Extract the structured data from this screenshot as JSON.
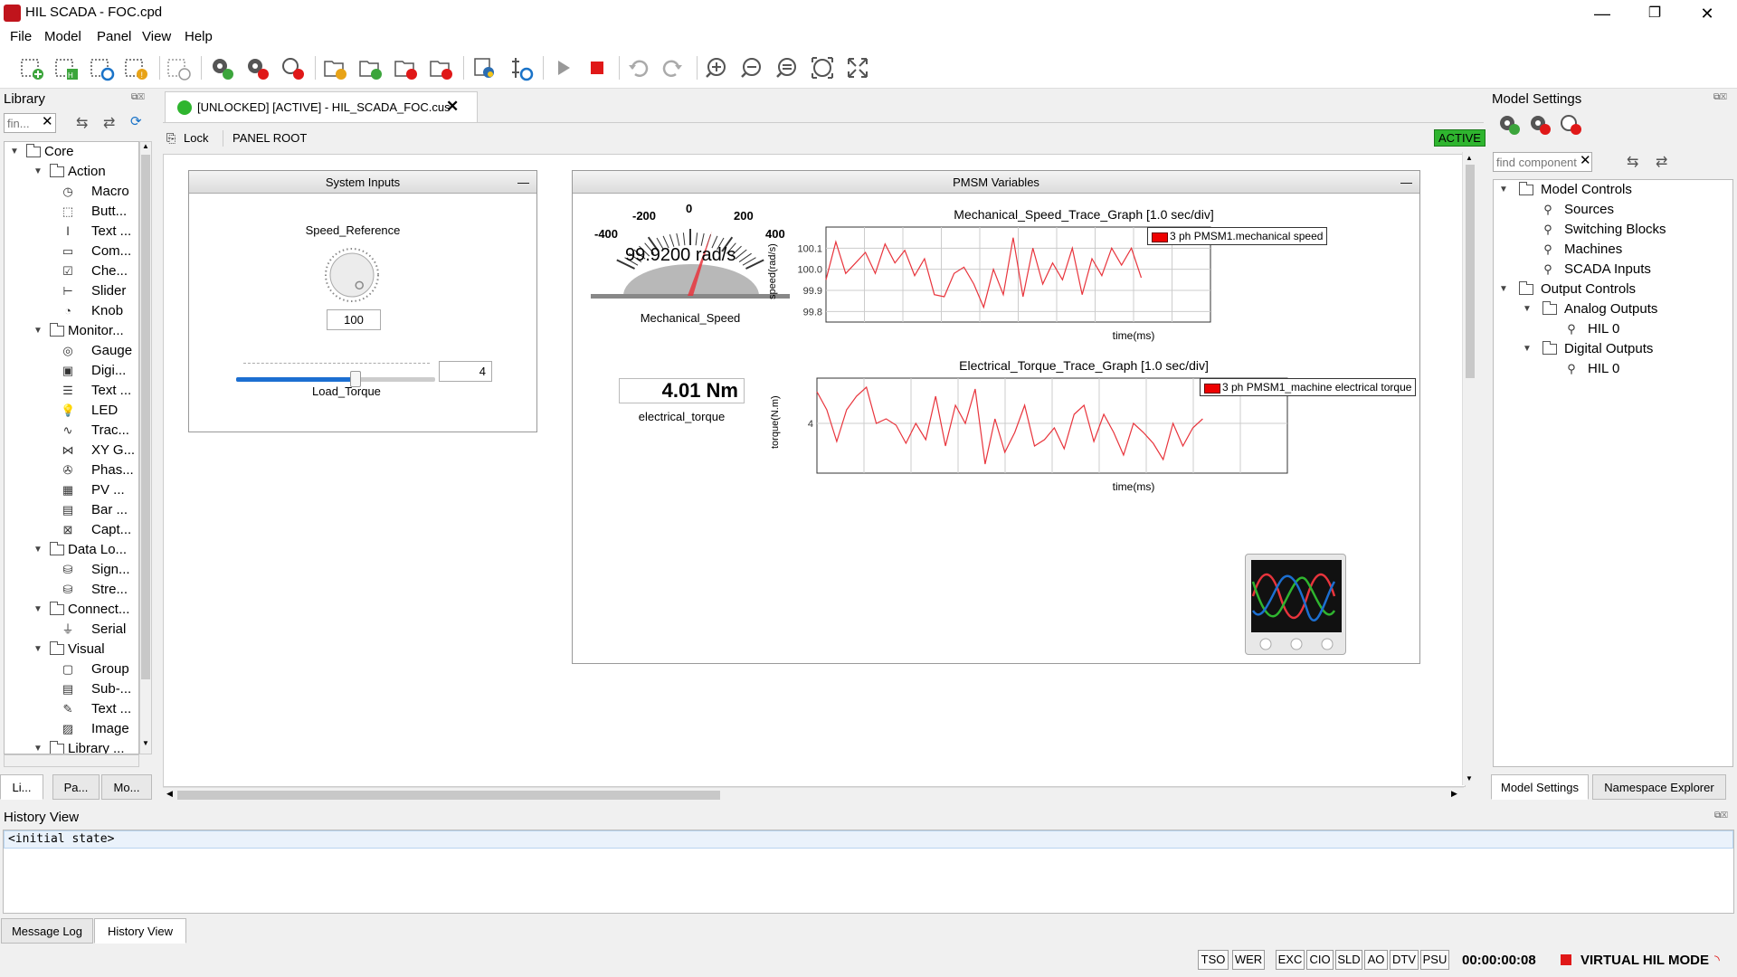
{
  "window": {
    "title": "HIL SCADA - FOC.cpd",
    "minimize": "—",
    "maximize": "❐",
    "close": "✕"
  },
  "menu": [
    "File",
    "Model",
    "Panel",
    "View",
    "Help"
  ],
  "library": {
    "header": "Library",
    "search_placeholder": "fin...",
    "tree": [
      {
        "label": "Core",
        "level": 0,
        "type": "folder",
        "expanded": true
      },
      {
        "label": "Action",
        "level": 1,
        "type": "folder",
        "expanded": true
      },
      {
        "label": "Macro",
        "level": 2,
        "icon": "macro-icon",
        "glyph": "◷"
      },
      {
        "label": "Butt...",
        "level": 2,
        "icon": "cursor-icon",
        "glyph": "⬚"
      },
      {
        "label": "Text ...",
        "level": 2,
        "icon": "text-cursor-icon",
        "glyph": "Ⅰ"
      },
      {
        "label": "Com...",
        "level": 2,
        "icon": "combo-icon",
        "glyph": "▭"
      },
      {
        "label": "Che...",
        "level": 2,
        "icon": "checkbox-icon",
        "glyph": "☑"
      },
      {
        "label": "Slider",
        "level": 2,
        "icon": "slider-icon",
        "glyph": "⊢"
      },
      {
        "label": "Knob",
        "level": 2,
        "icon": "knob-icon",
        "glyph": "◔"
      },
      {
        "label": "Monitor...",
        "level": 1,
        "type": "folder",
        "expanded": true
      },
      {
        "label": "Gauge",
        "level": 2,
        "icon": "gauge-icon",
        "glyph": "◎"
      },
      {
        "label": "Digi...",
        "level": 2,
        "icon": "digital-display-icon",
        "glyph": "▣"
      },
      {
        "label": "Text ...",
        "level": 2,
        "icon": "text-display-icon",
        "glyph": "☰"
      },
      {
        "label": "LED",
        "level": 2,
        "icon": "led-icon",
        "glyph": "💡"
      },
      {
        "label": "Trac...",
        "level": 2,
        "icon": "trace-icon",
        "glyph": "∿"
      },
      {
        "label": "XY G...",
        "level": 2,
        "icon": "xy-graph-icon",
        "glyph": "⋈"
      },
      {
        "label": "Phas...",
        "level": 2,
        "icon": "phasor-icon",
        "glyph": "✇"
      },
      {
        "label": "PV ...",
        "level": 2,
        "icon": "pv-icon",
        "glyph": "▦"
      },
      {
        "label": "Bar ...",
        "level": 2,
        "icon": "bar-icon",
        "glyph": "▤"
      },
      {
        "label": "Capt...",
        "level": 2,
        "icon": "capture-icon",
        "glyph": "⊠"
      },
      {
        "label": "Data Lo...",
        "level": 1,
        "type": "folder",
        "expanded": true
      },
      {
        "label": "Sign...",
        "level": 2,
        "icon": "database-icon",
        "glyph": "⛁"
      },
      {
        "label": "Stre...",
        "level": 2,
        "icon": "stream-db-icon",
        "glyph": "⛁"
      },
      {
        "label": "Connect...",
        "level": 1,
        "type": "folder",
        "expanded": true
      },
      {
        "label": "Serial",
        "level": 2,
        "icon": "serial-icon",
        "glyph": "⏚"
      },
      {
        "label": "Visual",
        "level": 1,
        "type": "folder",
        "expanded": true
      },
      {
        "label": "Group",
        "level": 2,
        "icon": "group-icon",
        "glyph": "▢"
      },
      {
        "label": "Sub-...",
        "level": 2,
        "icon": "subpanel-icon",
        "glyph": "▤"
      },
      {
        "label": "Text ...",
        "level": 2,
        "icon": "text-note-icon",
        "glyph": "✎"
      },
      {
        "label": "Image",
        "level": 2,
        "icon": "image-icon",
        "glyph": "▨"
      },
      {
        "label": "Library ...",
        "level": 1,
        "type": "folder",
        "expanded": true
      }
    ],
    "tabs": [
      "Li...",
      "Pa...",
      "Mo..."
    ]
  },
  "doc_tab": {
    "label": "[UNLOCKED] [ACTIVE] - HIL_SCADA_FOC.cus",
    "close": "✕"
  },
  "panel_toolbar": {
    "lock": "Lock",
    "root": "PANEL ROOT",
    "active": "ACTIVE"
  },
  "system_inputs": {
    "title": "System Inputs",
    "knob_label": "Speed_Reference",
    "knob_value": "100",
    "knob_level": 0.05,
    "slider_label": "Load_Torque",
    "slider_value": "4",
    "slider_level": 0.6
  },
  "pmsm": {
    "title": "PMSM Variables",
    "gauge": {
      "reading": "99.9200 rad/s",
      "label": "Mechanical_Speed",
      "ticks": [
        "-400",
        "-200",
        "0",
        "200",
        "400"
      ],
      "value": 99.92,
      "range": [
        -400,
        400
      ]
    },
    "digital": {
      "value": "4.01 Nm",
      "label": "electrical_torque"
    }
  },
  "chart_data": [
    {
      "type": "line",
      "title": "Mechanical_Speed_Trace_Graph [1.0 sec/div]",
      "xlabel": "time(ms)",
      "ylabel": "speed(rad/s)",
      "yticks": [
        "100.1",
        "100.0",
        "99.9",
        "99.8"
      ],
      "ylim": [
        99.75,
        100.2
      ],
      "grid": true,
      "legend_position": "top-right",
      "series": [
        {
          "name": "3 ph PMSM1.mechanical speed",
          "color": "#e8343c",
          "values": [
            99.95,
            100.13,
            99.98,
            100.03,
            100.08,
            99.98,
            100.12,
            100.03,
            100.09,
            99.97,
            100.05,
            99.88,
            99.87,
            99.98,
            100.01,
            99.93,
            99.82,
            100.0,
            99.88,
            100.15,
            99.87,
            100.1,
            99.93,
            100.03,
            99.95,
            100.1,
            99.88,
            100.05,
            99.97,
            100.1,
            100.02,
            100.1,
            99.96
          ]
        }
      ]
    },
    {
      "type": "line",
      "title": "Electrical_Torque_Trace_Graph [1.0 sec/div]",
      "xlabel": "time(ms)",
      "ylabel": "torque(N.m)",
      "yticks": [
        "4"
      ],
      "ylim": [
        3.45,
        4.5
      ],
      "grid": true,
      "legend_position": "top-right",
      "series": [
        {
          "name": "3 ph PMSM1_machine electrical torque",
          "color": "#e8343c",
          "values": [
            4.35,
            4.15,
            3.8,
            4.15,
            4.3,
            4.4,
            4.0,
            4.05,
            3.98,
            3.78,
            4.0,
            3.82,
            4.3,
            3.75,
            4.2,
            4.0,
            4.38,
            3.55,
            4.05,
            3.68,
            3.9,
            4.2,
            3.75,
            3.82,
            3.95,
            3.72,
            4.1,
            4.2,
            3.8,
            4.1,
            3.9,
            3.65,
            4.0,
            3.9,
            3.78,
            3.6,
            4.0,
            3.75,
            3.95,
            4.05
          ]
        }
      ]
    }
  ],
  "model_settings": {
    "header": "Model Settings",
    "search_placeholder": "find component",
    "tree": [
      {
        "label": "Model Controls",
        "level": 0,
        "type": "folder",
        "expanded": true
      },
      {
        "label": "Sources",
        "level": 1,
        "type": "item"
      },
      {
        "label": "Switching Blocks",
        "level": 1,
        "type": "item"
      },
      {
        "label": "Machines",
        "level": 1,
        "type": "item"
      },
      {
        "label": "SCADA Inputs",
        "level": 1,
        "type": "item"
      },
      {
        "label": "Output Controls",
        "level": 0,
        "type": "folder",
        "expanded": true
      },
      {
        "label": "Analog Outputs",
        "level": 1,
        "type": "folder",
        "expanded": true
      },
      {
        "label": "HIL 0",
        "level": 2,
        "type": "item"
      },
      {
        "label": "Digital Outputs",
        "level": 1,
        "type": "folder",
        "expanded": true
      },
      {
        "label": "HIL 0",
        "level": 2,
        "type": "item"
      }
    ],
    "tabs": [
      "Model Settings",
      "Namespace Explorer"
    ]
  },
  "history": {
    "header": "History View",
    "items": [
      "<initial state>"
    ],
    "tabs": [
      "Message Log",
      "History View"
    ]
  },
  "status": {
    "buttons_a": [
      "TSO",
      "WER"
    ],
    "buttons_b": [
      "EXC",
      "CIO",
      "SLD",
      "AO",
      "DTV",
      "PSU"
    ],
    "time": "00:00:00:08",
    "mode": "VIRTUAL HIL MODE"
  },
  "colors": {
    "accent_red": "#e01818",
    "active_green": "#2fb52f",
    "trace_red": "#e8343c"
  }
}
